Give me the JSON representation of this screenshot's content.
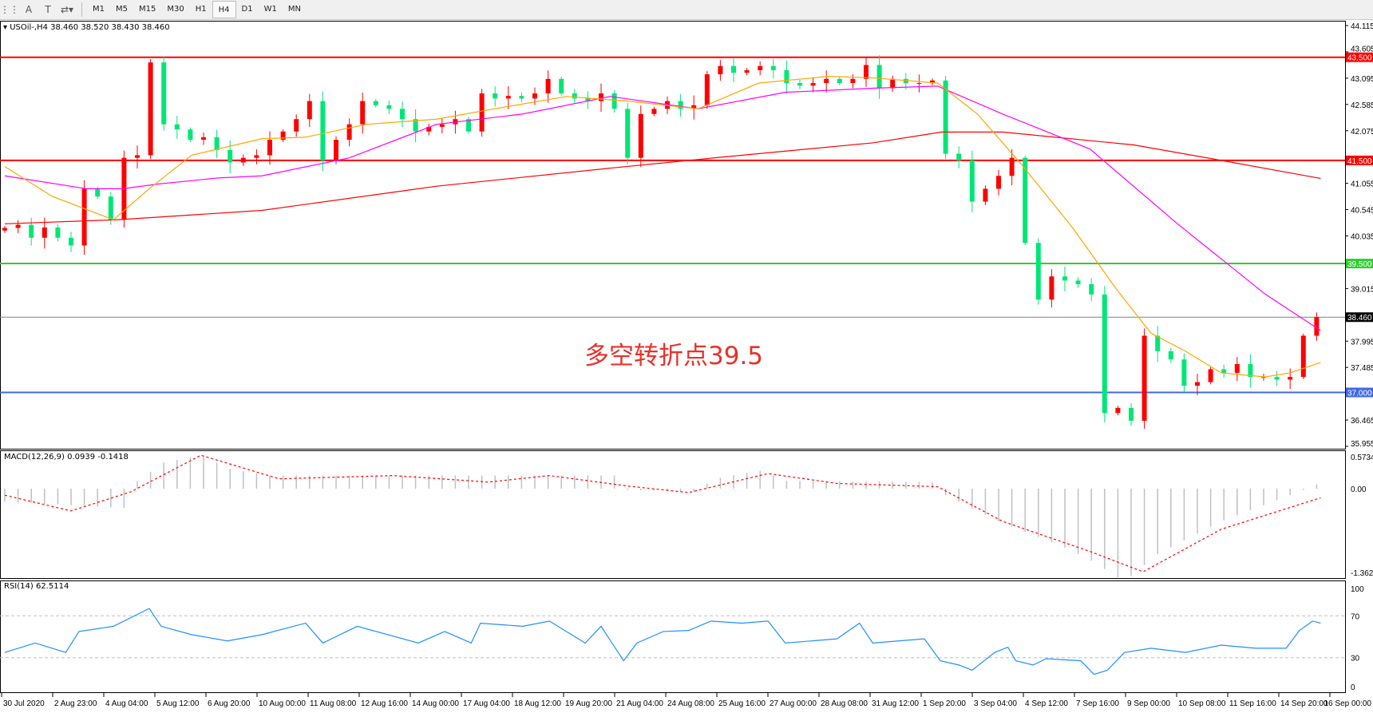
{
  "toolbar": {
    "icons": [
      "grid-icon",
      "text-a-icon",
      "text-box-icon",
      "arrows-icon"
    ],
    "timeframes": [
      "M1",
      "M5",
      "M15",
      "M30",
      "H1",
      "H4",
      "D1",
      "W1",
      "MN"
    ],
    "active_timeframe": "H4"
  },
  "main": {
    "header": "USOil-,H4  38.460 38.520 38.430 38.460",
    "annotation": "多空转折点39.5"
  },
  "macd": {
    "label": "MACD(12,26,9) 0.0939 -0.1418"
  },
  "rsi": {
    "label": "RSI(14) 62.5114"
  },
  "chart_data": [
    {
      "type": "candlestick",
      "symbol": "USOil-",
      "timeframe": "H4",
      "ylim": [
        35.955,
        44.115
      ],
      "price_ticks": [
        "44.115",
        "43.605",
        "43.095",
        "42.585",
        "42.075",
        "41.055",
        "40.545",
        "40.035",
        "39.015",
        "37.995",
        "37.485",
        "36.465",
        "35.955"
      ],
      "x_tick_labels": [
        "30 Jul 2020",
        "2 Aug 23:00",
        "4 Aug 04:00",
        "5 Aug 12:00",
        "6 Aug 20:00",
        "10 Aug 00:00",
        "11 Aug 08:00",
        "12 Aug 16:00",
        "14 Aug 00:00",
        "17 Aug 04:00",
        "18 Aug 12:00",
        "19 Aug 20:00",
        "21 Aug 04:00",
        "24 Aug 08:00",
        "25 Aug 16:00",
        "27 Aug 00:00",
        "28 Aug 08:00",
        "31 Aug 12:00",
        "1 Sep 20:00",
        "3 Sep 04:00",
        "4 Sep 12:00",
        "7 Sep 16:00",
        "9 Sep 00:00",
        "10 Sep 08:00",
        "11 Sep 16:00",
        "14 Sep 20:00",
        "16 Sep 00:00"
      ],
      "closes": [
        40.19,
        40.25,
        40.0,
        40.2,
        40.0,
        39.85,
        40.95,
        40.8,
        40.35,
        41.55,
        41.6,
        43.4,
        42.2,
        42.1,
        41.9,
        41.95,
        41.7,
        41.46,
        41.55,
        41.6,
        41.9,
        42.06,
        42.3,
        42.65,
        41.5,
        41.9,
        42.2,
        42.65,
        42.57,
        42.5,
        42.3,
        42.06,
        42.15,
        42.2,
        42.3,
        42.06,
        42.8,
        42.7,
        42.75,
        42.7,
        42.8,
        43.08,
        42.8,
        42.7,
        42.65,
        42.8,
        42.5,
        41.55,
        42.4,
        42.5,
        42.65,
        42.5,
        42.57,
        43.17,
        43.33,
        43.2,
        43.25,
        43.33,
        43.25,
        43.0,
        42.95,
        43.0,
        43.08,
        43.0,
        43.08,
        43.35,
        42.9,
        43.08,
        43.0,
        43.0,
        43.05,
        41.63,
        41.5,
        40.7,
        40.95,
        41.2,
        41.55,
        39.9,
        38.8,
        39.25,
        39.17,
        39.1,
        38.9,
        36.6,
        36.7,
        36.45,
        38.1,
        37.8,
        37.64,
        37.13,
        37.2,
        37.45,
        37.38,
        37.55,
        37.3,
        37.3,
        37.25,
        37.3,
        38.1,
        38.46
      ],
      "bull_color": "#ff0000",
      "bear_color": "#00e676",
      "moving_averages": [
        {
          "color": "#ff0000",
          "points": [
            [
              0,
              40.27
            ],
            [
              8.6,
              40.35
            ],
            [
              19.4,
              40.53
            ],
            [
              32.6,
              41.0
            ],
            [
              45.7,
              41.35
            ],
            [
              53.6,
              41.55
            ],
            [
              65.5,
              41.84
            ],
            [
              70.7,
              42.05
            ],
            [
              75.3,
              42.05
            ],
            [
              85.2,
              41.8
            ],
            [
              91.8,
              41.5
            ],
            [
              99.3,
              41.15
            ]
          ]
        },
        {
          "color": "#ff00ff",
          "points": [
            [
              0,
              41.2
            ],
            [
              6.2,
              40.95
            ],
            [
              8.9,
              40.95
            ],
            [
              11.5,
              41.04
            ],
            [
              16.1,
              41.16
            ],
            [
              19.4,
              41.2
            ],
            [
              26,
              41.55
            ],
            [
              32.6,
              42.2
            ],
            [
              39.1,
              42.4
            ],
            [
              45.7,
              42.74
            ],
            [
              52.3,
              42.5
            ],
            [
              58.9,
              42.82
            ],
            [
              65.5,
              42.9
            ],
            [
              70.4,
              42.94
            ],
            [
              75.3,
              42.4
            ],
            [
              81.9,
              41.72
            ],
            [
              88.5,
              40.27
            ],
            [
              95.1,
              38.91
            ],
            [
              99.3,
              38.2
            ]
          ]
        },
        {
          "color": "#ffa500",
          "points": [
            [
              0,
              41.38
            ],
            [
              3.6,
              40.8
            ],
            [
              8.2,
              40.35
            ],
            [
              10.9,
              40.95
            ],
            [
              14.1,
              41.6
            ],
            [
              19.4,
              41.92
            ],
            [
              22.7,
              41.95
            ],
            [
              27.3,
              42.2
            ],
            [
              32.6,
              42.3
            ],
            [
              36.5,
              42.48
            ],
            [
              42.4,
              42.74
            ],
            [
              47,
              42.65
            ],
            [
              52.3,
              42.5
            ],
            [
              56.9,
              43.0
            ],
            [
              62.2,
              43.13
            ],
            [
              65.5,
              43.1
            ],
            [
              70.4,
              43.0
            ],
            [
              73.4,
              42.4
            ],
            [
              76.6,
              41.46
            ],
            [
              80.6,
              40.19
            ],
            [
              83.9,
              39.0
            ],
            [
              86.5,
              38.15
            ],
            [
              89.1,
              37.8
            ],
            [
              91.8,
              37.38
            ],
            [
              95.1,
              37.3
            ],
            [
              97,
              37.38
            ],
            [
              99.3,
              37.58
            ]
          ]
        }
      ],
      "levels": [
        {
          "value": 43.5,
          "label": "43.500",
          "color": "#ff0000"
        },
        {
          "value": 41.5,
          "label": "41.500",
          "color": "#ff0000"
        },
        {
          "value": 39.5,
          "label": "39.500",
          "color": "#32cd32"
        },
        {
          "value": 38.46,
          "label": "38.460",
          "color": "#808080",
          "tag_color": "#000000"
        },
        {
          "value": 37.0,
          "label": "37.000",
          "color": "#4169e1"
        }
      ]
    },
    {
      "type": "bar",
      "title": "MACD(12,26,9) 0.0939 -0.1418",
      "ylim": [
        -1.3628,
        0.5734
      ],
      "ticks": [
        "0.5734",
        "0.00",
        "-1.3628"
      ],
      "main": [
        [
          0,
          -0.2
        ],
        [
          9.5,
          -0.3
        ],
        [
          9.9,
          0.1
        ],
        [
          12,
          0.4
        ],
        [
          14.8,
          0.51
        ],
        [
          17,
          0.3
        ],
        [
          20,
          0.2
        ],
        [
          46,
          0.2
        ],
        [
          47,
          -0.02
        ],
        [
          52,
          -0.05
        ],
        [
          53.6,
          0.15
        ],
        [
          56.9,
          0.28
        ],
        [
          59,
          0.12
        ],
        [
          70.4,
          0.1
        ],
        [
          71,
          -0.1
        ],
        [
          75,
          -0.5
        ],
        [
          80,
          -0.9
        ],
        [
          82,
          -1.1
        ],
        [
          84.5,
          -1.42
        ],
        [
          87,
          -1.0
        ],
        [
          91.8,
          -0.5
        ],
        [
          97,
          -0.1
        ],
        [
          99.3,
          0.09
        ]
      ],
      "signal": [
        [
          0,
          -0.1
        ],
        [
          5,
          -0.34
        ],
        [
          9.5,
          -0.05
        ],
        [
          14.8,
          0.51
        ],
        [
          20.7,
          0.15
        ],
        [
          29.3,
          0.2
        ],
        [
          36.5,
          0.1
        ],
        [
          41.1,
          0.2
        ],
        [
          47,
          0.04
        ],
        [
          51.6,
          -0.06
        ],
        [
          57.6,
          0.23
        ],
        [
          62.8,
          0.08
        ],
        [
          70.4,
          0.03
        ],
        [
          75.3,
          -0.5
        ],
        [
          81.9,
          -0.96
        ],
        [
          85.9,
          -1.27
        ],
        [
          91.8,
          -0.62
        ],
        [
          99.3,
          -0.14
        ]
      ]
    },
    {
      "type": "line",
      "title": "RSI(14) 62.5114",
      "ylim": [
        0,
        100
      ],
      "ticks": [
        "100",
        "70",
        "30",
        "0"
      ],
      "levels": [
        70,
        30
      ],
      "color": "#1e90ff",
      "values": [
        [
          0,
          35
        ],
        [
          2.3,
          44
        ],
        [
          4.6,
          35
        ],
        [
          5.6,
          55
        ],
        [
          8.2,
          60
        ],
        [
          10.9,
          77
        ],
        [
          11.8,
          60
        ],
        [
          14.1,
          52
        ],
        [
          16.8,
          46
        ],
        [
          19.4,
          52
        ],
        [
          22.7,
          63
        ],
        [
          24,
          44
        ],
        [
          26.6,
          60
        ],
        [
          31.2,
          44
        ],
        [
          33.2,
          55
        ],
        [
          35.2,
          44
        ],
        [
          35.9,
          63
        ],
        [
          39.1,
          60
        ],
        [
          41.1,
          65
        ],
        [
          43.8,
          44
        ],
        [
          45,
          60
        ],
        [
          46.7,
          27
        ],
        [
          47.7,
          44
        ],
        [
          49.7,
          55
        ],
        [
          51.6,
          56
        ],
        [
          53.3,
          65
        ],
        [
          55.6,
          63
        ],
        [
          57.6,
          65
        ],
        [
          58.9,
          44
        ],
        [
          62.8,
          48
        ],
        [
          64.5,
          63
        ],
        [
          65.5,
          44
        ],
        [
          69.4,
          48
        ],
        [
          70.6,
          27
        ],
        [
          72,
          23
        ],
        [
          73,
          18
        ],
        [
          74.7,
          35
        ],
        [
          75.7,
          40
        ],
        [
          76.3,
          27
        ],
        [
          77.6,
          23
        ],
        [
          78.6,
          29
        ],
        [
          81.2,
          27
        ],
        [
          82.2,
          14
        ],
        [
          83.2,
          18
        ],
        [
          84.5,
          35
        ],
        [
          86.5,
          39
        ],
        [
          89.1,
          35
        ],
        [
          91.8,
          42
        ],
        [
          94.4,
          39
        ],
        [
          96.7,
          39
        ],
        [
          97.7,
          56
        ],
        [
          98.7,
          65
        ],
        [
          99.3,
          63
        ]
      ]
    }
  ]
}
